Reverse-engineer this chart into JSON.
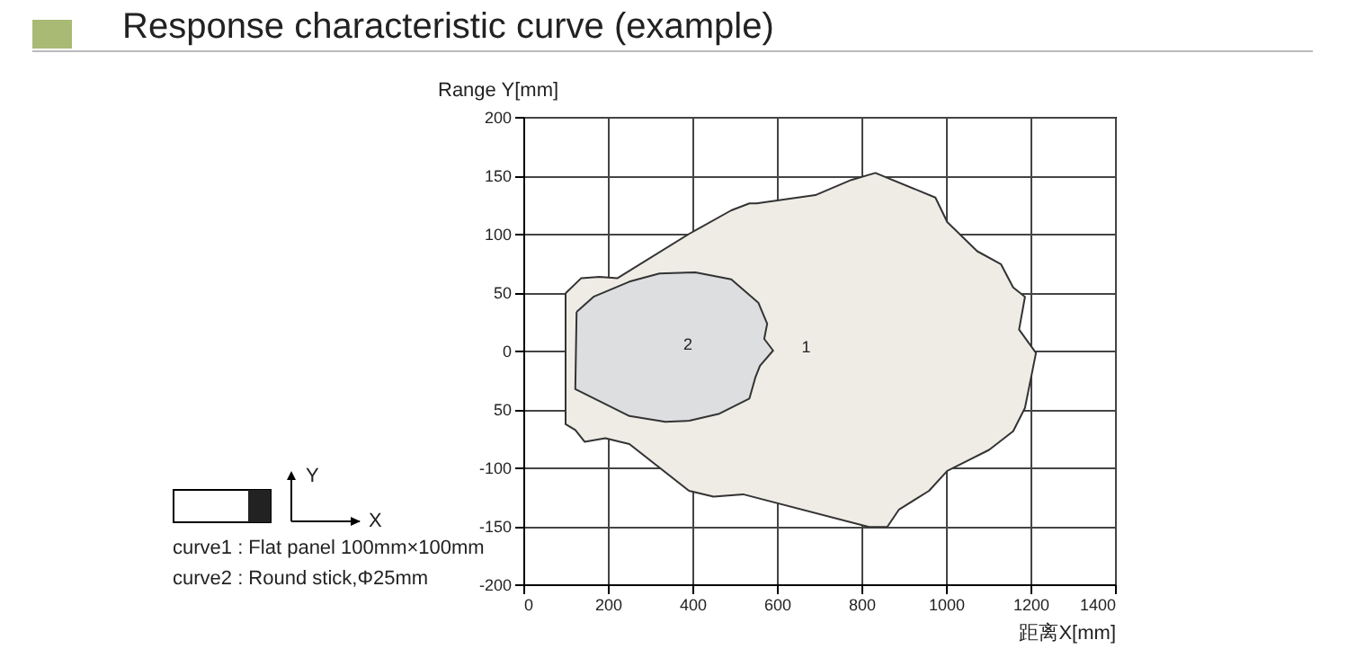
{
  "chart_data": {
    "type": "area",
    "title": "Response characteristic curve (example)",
    "xlabel": "距离X[mm]",
    "ylabel": "Range Y[mm]",
    "xlim": [
      0,
      1400
    ],
    "xticks": [
      0,
      200,
      400,
      600,
      800,
      1000,
      1200,
      1400
    ],
    "ylim": [
      -200,
      200
    ],
    "yticks": [
      -200,
      -150,
      -100,
      {
        "value": -50,
        "label": "50"
      },
      0,
      50,
      100,
      150,
      200
    ],
    "grid": true,
    "marker": "none",
    "line_style": "solid",
    "series": [
      {
        "name": "1",
        "color": "#efece6",
        "x": [
          100,
          137,
          180,
          223,
          393,
          492,
          535,
          552,
          691,
          776,
          833,
          975,
          1003,
          1074,
          1130,
          1159,
          1187,
          1173,
          1213,
          1187,
          1159,
          1102,
          1003,
          960,
          889,
          861,
          818,
          520,
          450,
          392,
          251,
          194,
          145,
          123,
          100,
          100
        ],
        "values": [
          49,
          62,
          63,
          62,
          100,
          120,
          126,
          126,
          133,
          146,
          152,
          131,
          110,
          85,
          74,
          54,
          46,
          18,
          -2,
          -49,
          -69,
          -85,
          -103,
          -120,
          -136,
          -151,
          -151,
          -123,
          -125,
          -120,
          -80,
          -75,
          -78,
          -68,
          -63,
          49
        ]
      },
      {
        "name": "2",
        "color": "#dcdee0",
        "x": [
          126,
          166,
          251,
          322,
          407,
          492,
          556,
          577,
          570,
          591,
          560,
          549,
          535,
          464,
          393,
          336,
          251,
          123,
          126
        ],
        "values": [
          33,
          46,
          59,
          66,
          67,
          61,
          41,
          23,
          10,
          0,
          -13,
          -23,
          -41,
          -54,
          -60,
          -61,
          -56,
          -33,
          33
        ]
      }
    ],
    "annotations": [
      "curve1 : Flat panel 100mm×100mm",
      "curve2 : Round stick,Φ25mm",
      "Y",
      "X"
    ]
  }
}
